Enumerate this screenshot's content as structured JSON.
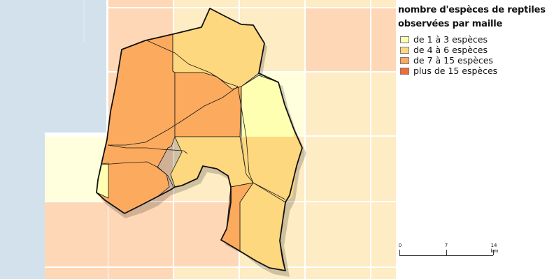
{
  "map": {
    "sea_color": "#d3e1ec",
    "grid_line_color": "#ffffff",
    "commune_fill_colors": {
      "class_1": "#ffffb2",
      "class_2": "#fed87e",
      "class_3": "#fcaa5d"
    }
  },
  "legend": {
    "title_line1": "nombre d'espèces de reptiles",
    "title_line2": "observées par maille",
    "items": [
      {
        "label": "de 1 à 3 espèces",
        "color": "#ffffb2"
      },
      {
        "label": "de 4 à 6 espèces",
        "color": "#fed87e"
      },
      {
        "label": "de 7 à 15 espèces",
        "color": "#fcaa5d"
      },
      {
        "label": "plus de 15 espèces",
        "color": "#f56b35"
      }
    ]
  },
  "scale": {
    "labels": [
      "0",
      "7",
      "14 km"
    ]
  }
}
